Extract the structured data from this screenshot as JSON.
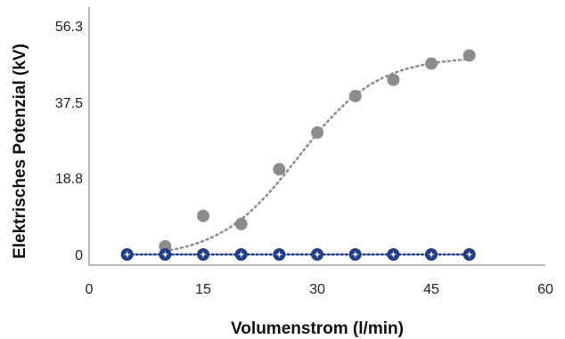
{
  "chart_data": {
    "type": "scatter",
    "xlabel": "Volumenstrom (l/min)",
    "ylabel": "Elektrisches Potenzial (kV)",
    "xlim": [
      0,
      60
    ],
    "ylim": [
      0,
      56.3
    ],
    "x_ticks": [
      0,
      15,
      30,
      45,
      60
    ],
    "y_ticks": [
      0,
      18.8,
      37.5,
      56.3
    ],
    "grid": false,
    "series": [
      {
        "color": "#8c8c8c",
        "marker": "circle",
        "trendline": "dotted",
        "points": [
          [
            10,
            2
          ],
          [
            15,
            9.5
          ],
          [
            20,
            7.5
          ],
          [
            25,
            21
          ],
          [
            30,
            30
          ],
          [
            35,
            39
          ],
          [
            40,
            43
          ],
          [
            45,
            47
          ],
          [
            50,
            49
          ]
        ]
      },
      {
        "color": "#1f3d8c",
        "marker": "star-circle",
        "trendline": "dotted",
        "points": [
          [
            5,
            0
          ],
          [
            10,
            0
          ],
          [
            15,
            0
          ],
          [
            20,
            0
          ],
          [
            25,
            0
          ],
          [
            30,
            0
          ],
          [
            35,
            0
          ],
          [
            40,
            0
          ],
          [
            45,
            0
          ],
          [
            50,
            0
          ]
        ]
      }
    ]
  }
}
